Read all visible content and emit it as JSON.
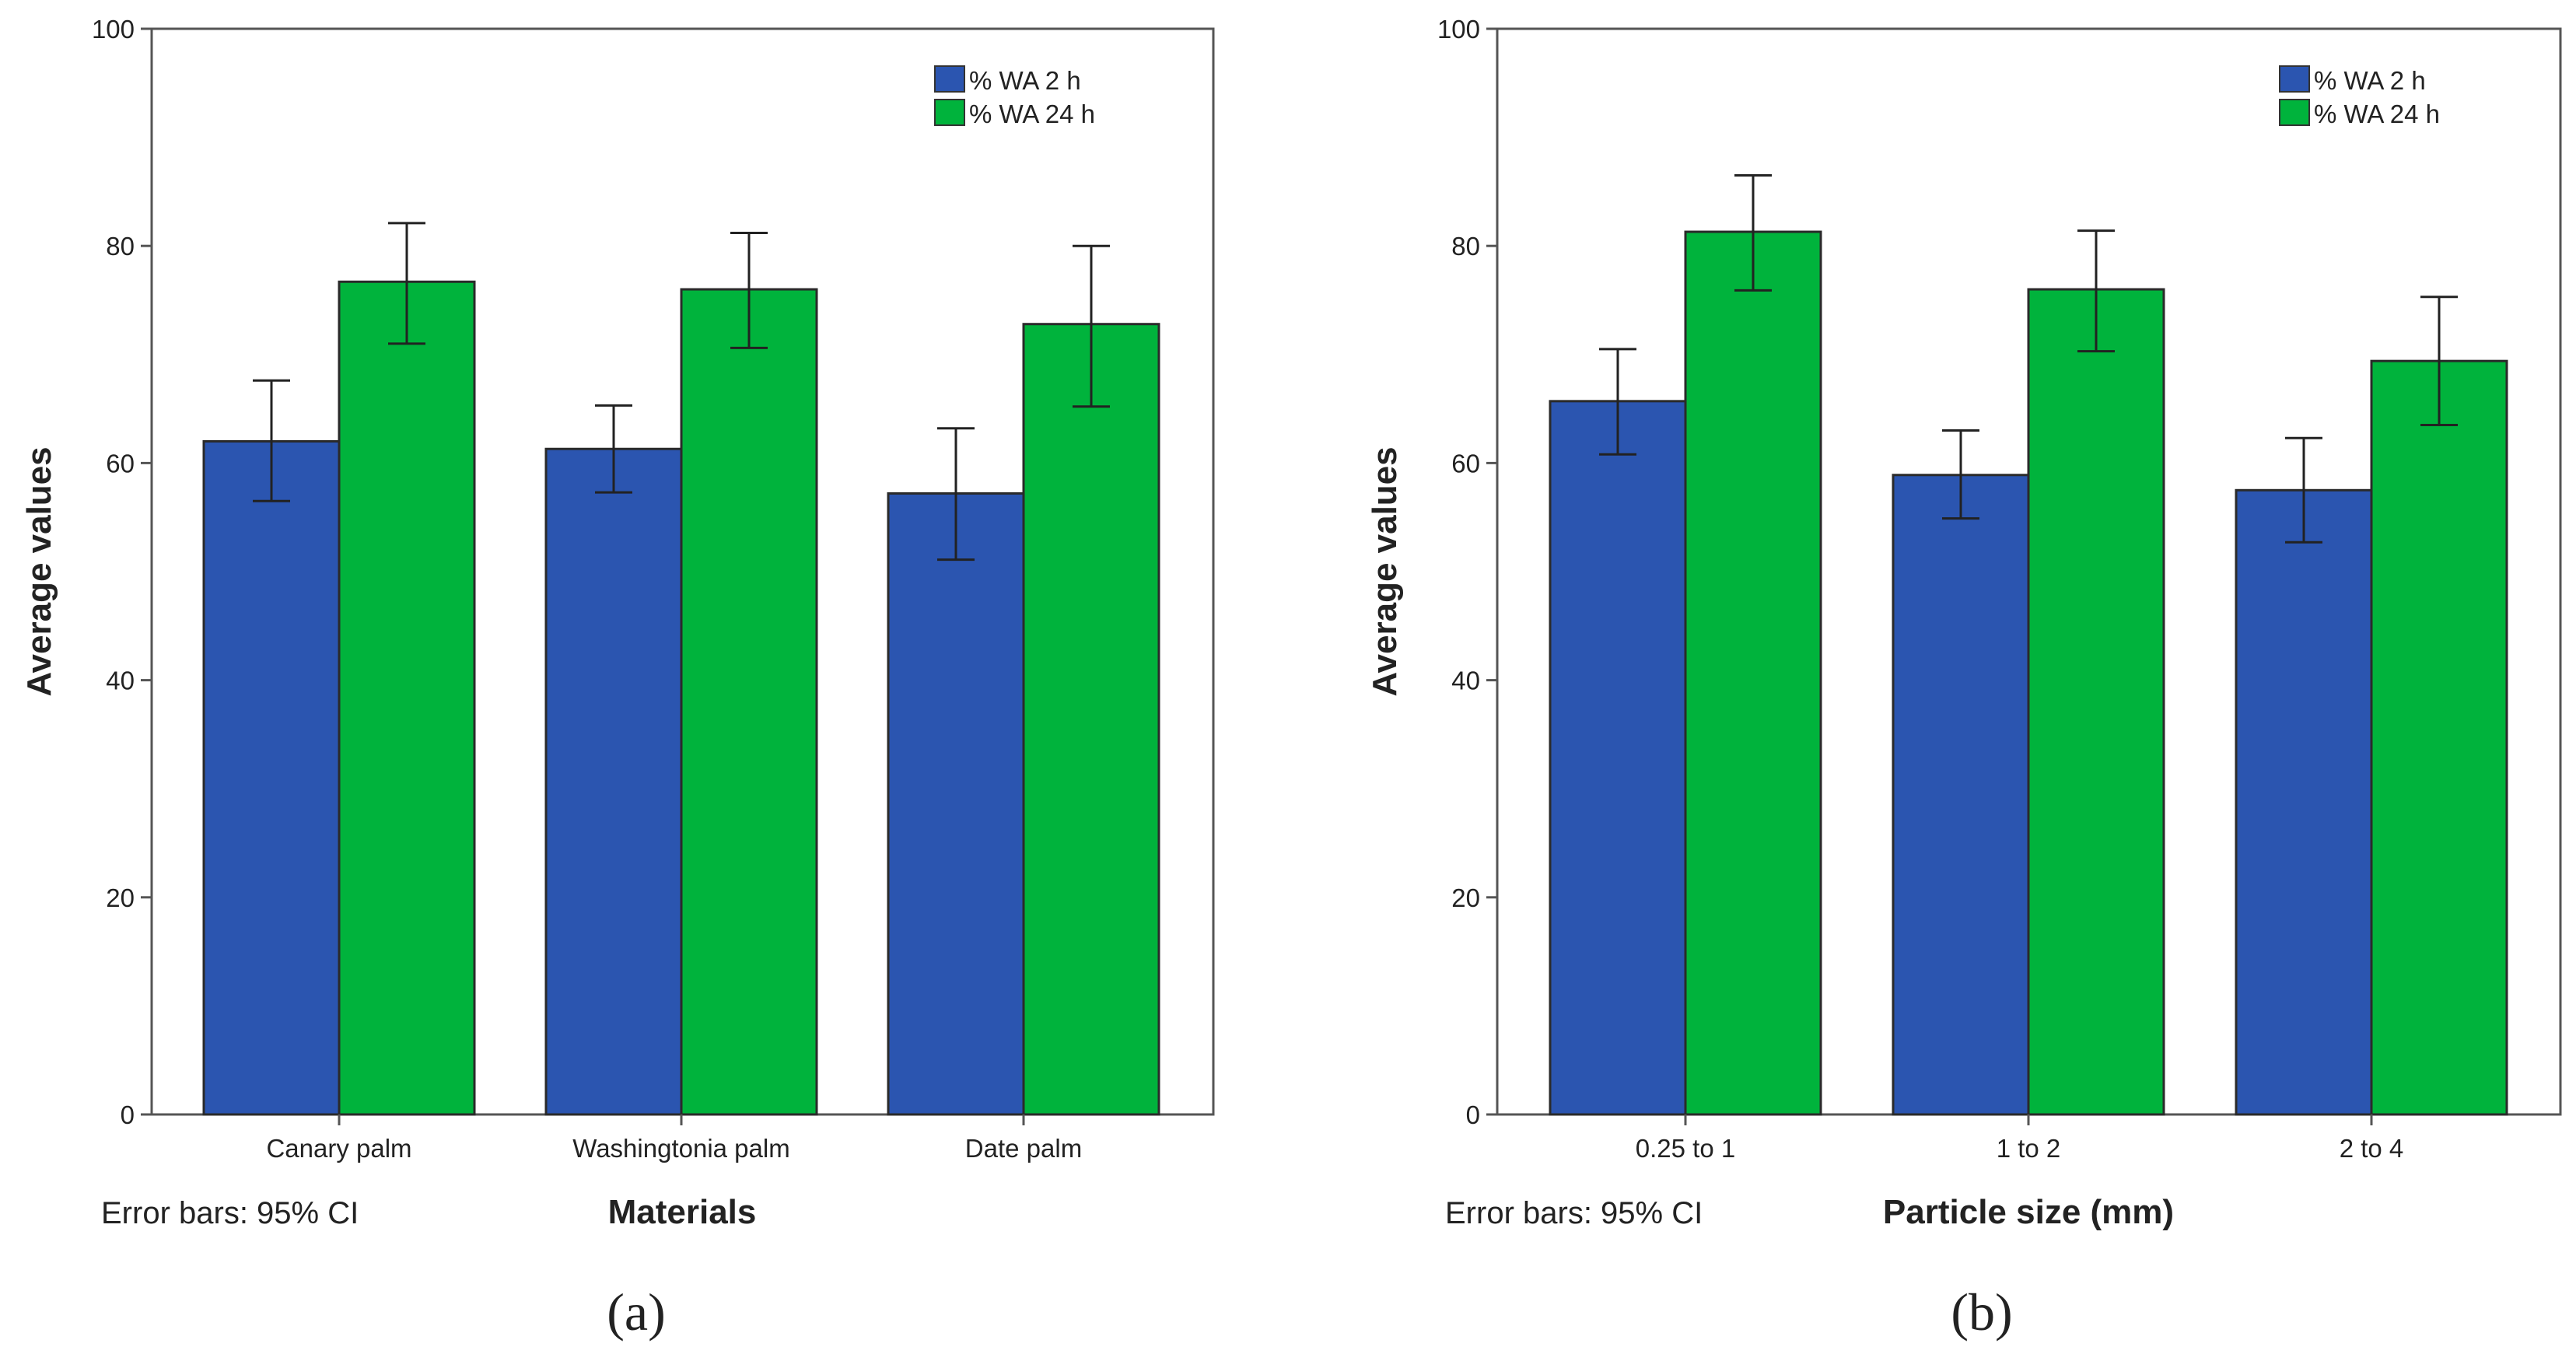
{
  "chart_data": [
    {
      "type": "bar",
      "panel_label": "(a)",
      "xlabel": "Materials",
      "ylabel": "Average values",
      "footnote": "Error bars: 95% CI",
      "categories": [
        "Canary palm",
        "Washingtonia palm",
        "Date palm"
      ],
      "ylim": [
        0,
        100
      ],
      "yticks": [
        0,
        20,
        40,
        60,
        80,
        100
      ],
      "legend_position": "top-right",
      "series": [
        {
          "name": "% WA 2 h",
          "color": "#2b55b0",
          "values": [
            62,
            61.3,
            57.2
          ],
          "ci_low": [
            56.5,
            57.3,
            51.1
          ],
          "ci_high": [
            67.6,
            65.3,
            63.2
          ]
        },
        {
          "name": "% WA 24 h",
          "color": "#00b33c",
          "values": [
            76.7,
            76,
            72.8
          ],
          "ci_low": [
            71,
            70.6,
            65.2
          ],
          "ci_high": [
            82.1,
            81.2,
            80
          ]
        }
      ]
    },
    {
      "type": "bar",
      "panel_label": "(b)",
      "xlabel": "Particle size (mm)",
      "ylabel": "Average values",
      "footnote": "Error bars: 95% CI",
      "categories": [
        "0.25 to 1",
        "1 to 2",
        "2 to 4"
      ],
      "ylim": [
        0,
        100
      ],
      "yticks": [
        0,
        20,
        40,
        60,
        80,
        100
      ],
      "legend_position": "top-right",
      "series": [
        {
          "name": "% WA 2 h",
          "color": "#2b55b0",
          "values": [
            65.7,
            58.9,
            57.5
          ],
          "ci_low": [
            60.8,
            54.9,
            52.7
          ],
          "ci_high": [
            70.5,
            63,
            62.3
          ]
        },
        {
          "name": "% WA 24 h",
          "color": "#00b33c",
          "values": [
            81.3,
            76,
            69.4
          ],
          "ci_low": [
            75.9,
            70.3,
            63.5
          ],
          "ci_high": [
            86.5,
            81.4,
            75.3
          ]
        }
      ]
    }
  ]
}
